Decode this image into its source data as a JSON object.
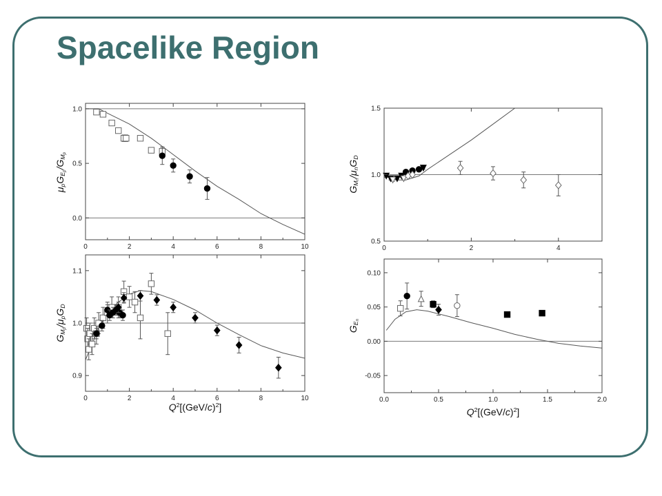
{
  "slide": {
    "title": "Spacelike Region"
  },
  "chart_data": [
    {
      "id": "p1",
      "type": "scatter",
      "ylabel_parts": [
        "μ",
        "p",
        "G",
        "E",
        "p",
        "/G",
        "M",
        "p"
      ],
      "xlim": [
        0,
        10
      ],
      "ylim": [
        -0.2,
        1.05
      ],
      "xticks": [
        0,
        2,
        4,
        6,
        8,
        10
      ],
      "yticks": [
        0.0,
        0.5,
        1.0
      ],
      "xtick_labels": [
        "0",
        "2",
        "4",
        "6",
        "8",
        "10"
      ],
      "ytick_labels": [
        "0.0",
        "0.5",
        "1.0"
      ],
      "hlines": [
        1.0,
        0.0
      ],
      "curve": [
        [
          0,
          1.0
        ],
        [
          0.6,
          1.0
        ],
        [
          1,
          0.96
        ],
        [
          2,
          0.86
        ],
        [
          3,
          0.73
        ],
        [
          4,
          0.58
        ],
        [
          5,
          0.43
        ],
        [
          6,
          0.29
        ],
        [
          7,
          0.17
        ],
        [
          8,
          0.04
        ],
        [
          9,
          -0.06
        ],
        [
          10,
          -0.15
        ]
      ],
      "series": [
        {
          "marker": "open-square",
          "points": [
            [
              0.5,
              0.97,
              0
            ],
            [
              0.8,
              0.95,
              0
            ],
            [
              1.2,
              0.87,
              0
            ],
            [
              1.5,
              0.8,
              0.02
            ],
            [
              1.75,
              0.73,
              0.03
            ],
            [
              1.85,
              0.73,
              0.03
            ],
            [
              2.5,
              0.73,
              0.02
            ],
            [
              3.0,
              0.62,
              0.02
            ],
            [
              3.5,
              0.61,
              0.04
            ]
          ]
        },
        {
          "marker": "filled-circle",
          "points": [
            [
              3.5,
              0.57,
              0.08
            ],
            [
              4.0,
              0.48,
              0.06
            ],
            [
              4.75,
              0.38,
              0.06
            ],
            [
              5.55,
              0.27,
              0.1
            ]
          ]
        }
      ]
    },
    {
      "id": "p2",
      "type": "scatter",
      "ylabel_parts": [
        "G",
        "M",
        "n",
        "/μ",
        "n",
        "G",
        "D"
      ],
      "xlim": [
        0,
        5
      ],
      "ylim": [
        0.5,
        1.5
      ],
      "xticks": [
        0,
        2,
        4
      ],
      "yticks": [
        0.5,
        1.0,
        1.5
      ],
      "xtick_labels": [
        "0",
        "2",
        "4"
      ],
      "ytick_labels": [
        "0.5",
        "1.0",
        "1.5"
      ],
      "hlines": [
        1.0
      ],
      "curve": [
        [
          0,
          0.99
        ],
        [
          0.3,
          0.96
        ],
        [
          0.5,
          0.96
        ],
        [
          0.8,
          0.99
        ],
        [
          1.0,
          1.04
        ],
        [
          1.5,
          1.15
        ],
        [
          2.0,
          1.26
        ],
        [
          2.5,
          1.38
        ],
        [
          3.0,
          1.5
        ],
        [
          3.2,
          1.55
        ]
      ],
      "series": [
        {
          "marker": "filled-triangle-down",
          "points": [
            [
              0.05,
              0.99,
              0.01
            ],
            [
              0.15,
              0.97,
              0.01
            ],
            [
              0.3,
              0.97,
              0.01
            ],
            [
              0.4,
              0.99,
              0.01
            ],
            [
              0.9,
              1.05,
              0.01
            ]
          ]
        },
        {
          "marker": "filled-circle",
          "points": [
            [
              0.5,
              1.02,
              0.01
            ],
            [
              0.65,
              1.03,
              0.01
            ],
            [
              0.8,
              1.04,
              0.01
            ]
          ]
        },
        {
          "marker": "open-triangle-down",
          "points": [
            [
              0.2,
              0.96,
              0.01
            ],
            [
              0.45,
              0.97,
              0.01
            ]
          ]
        },
        {
          "marker": "open-diamond",
          "points": [
            [
              0.55,
              0.99,
              0.01
            ],
            [
              0.65,
              1.0,
              0.01
            ],
            [
              1.75,
              1.05,
              0.05
            ],
            [
              2.5,
              1.01,
              0.05
            ],
            [
              3.2,
              0.96,
              0.06
            ],
            [
              4.0,
              0.92,
              0.08
            ]
          ]
        }
      ]
    },
    {
      "id": "p3",
      "type": "scatter",
      "ylabel_parts": [
        "G",
        "M",
        "p",
        "/μ",
        "p",
        "G",
        "D"
      ],
      "xlabel_parts": [
        "Q",
        "2",
        "[(GeV/",
        "c",
        ")",
        "2",
        "]"
      ],
      "xlim": [
        0,
        10
      ],
      "ylim": [
        0.87,
        1.13
      ],
      "xticks": [
        0,
        2,
        4,
        6,
        8,
        10
      ],
      "yticks": [
        0.9,
        1.0,
        1.1
      ],
      "xtick_labels": [
        "0",
        "2",
        "4",
        "6",
        "8",
        "10"
      ],
      "ytick_labels": [
        "0.9",
        "1.0",
        "1.1"
      ],
      "hlines": [
        1.0
      ],
      "curve": [
        [
          0,
          0.93
        ],
        [
          0.3,
          0.96
        ],
        [
          0.6,
          0.99
        ],
        [
          1.0,
          1.02
        ],
        [
          1.5,
          1.04
        ],
        [
          2.0,
          1.055
        ],
        [
          2.5,
          1.062
        ],
        [
          3.0,
          1.06
        ],
        [
          4.0,
          1.045
        ],
        [
          5.0,
          1.025
        ],
        [
          6.0,
          1.0
        ],
        [
          7.0,
          0.978
        ],
        [
          8.0,
          0.957
        ],
        [
          9.0,
          0.943
        ],
        [
          10,
          0.933
        ]
      ],
      "series": [
        {
          "marker": "open-square",
          "points": [
            [
              0.05,
              0.99,
              0.02
            ],
            [
              0.1,
              0.97,
              0.02
            ],
            [
              0.15,
              0.95,
              0.02
            ],
            [
              0.2,
              0.98,
              0.02
            ],
            [
              0.3,
              0.96,
              0.02
            ],
            [
              0.4,
              0.99,
              0.02
            ],
            [
              0.5,
              0.98,
              0.02
            ],
            [
              0.6,
              1.0,
              0.02
            ],
            [
              0.8,
              1.01,
              0.02
            ],
            [
              1.0,
              1.02,
              0.02
            ],
            [
              1.2,
              1.03,
              0.02
            ],
            [
              1.5,
              1.03,
              0.02
            ],
            [
              1.75,
              1.06,
              0.02
            ],
            [
              2.0,
              1.05,
              0.02
            ],
            [
              2.25,
              1.04,
              0.02
            ],
            [
              2.5,
              1.01,
              0.04
            ],
            [
              3.0,
              1.075,
              0.02
            ],
            [
              3.75,
              0.98,
              0.04
            ]
          ]
        },
        {
          "marker": "filled-circle",
          "points": [
            [
              0.5,
              0.98,
              0.01
            ],
            [
              0.75,
              0.995,
              0.01
            ],
            [
              1.0,
              1.025,
              0.01
            ],
            [
              1.1,
              1.015,
              0.01
            ],
            [
              1.25,
              1.02,
              0.01
            ],
            [
              1.4,
              1.025,
              0.01
            ],
            [
              1.55,
              1.02,
              0.01
            ],
            [
              1.7,
              1.015,
              0.01
            ]
          ]
        },
        {
          "marker": "filled-diamond",
          "points": [
            [
              1.5,
              1.03,
              0.01
            ],
            [
              1.75,
              1.048,
              0.01
            ],
            [
              2.5,
              1.052,
              0.01
            ],
            [
              3.25,
              1.044,
              0.01
            ],
            [
              4.0,
              1.03,
              0.01
            ],
            [
              5.0,
              1.01,
              0.01
            ],
            [
              6.0,
              0.986,
              0.01
            ],
            [
              7.0,
              0.958,
              0.015
            ],
            [
              8.8,
              0.915,
              0.02
            ]
          ]
        }
      ]
    },
    {
      "id": "p4",
      "type": "scatter",
      "ylabel_parts": [
        "G",
        "E",
        "n"
      ],
      "xlabel_parts": [
        "Q",
        "2",
        "[(GeV/",
        "c",
        ")",
        "2",
        "]"
      ],
      "xlim": [
        0,
        2
      ],
      "ylim": [
        -0.075,
        0.12
      ],
      "xticks": [
        0,
        0.5,
        1.0,
        1.5,
        2.0
      ],
      "yticks": [
        -0.05,
        0.0,
        0.05,
        0.1
      ],
      "xtick_labels": [
        "0.0",
        "0.5",
        "1.0",
        "1.5",
        "2.0"
      ],
      "ytick_labels": [
        "-0.05",
        "0.00",
        "0.05",
        "0.10"
      ],
      "hlines": [
        0.0
      ],
      "curve": [
        [
          0.02,
          0.016
        ],
        [
          0.1,
          0.032
        ],
        [
          0.2,
          0.043
        ],
        [
          0.3,
          0.046
        ],
        [
          0.4,
          0.044
        ],
        [
          0.6,
          0.036
        ],
        [
          0.8,
          0.027
        ],
        [
          1.0,
          0.019
        ],
        [
          1.2,
          0.01
        ],
        [
          1.4,
          0.003
        ],
        [
          1.6,
          -0.003
        ],
        [
          1.8,
          -0.007
        ],
        [
          2.0,
          -0.01
        ]
      ],
      "series": [
        {
          "marker": "open-square",
          "points": [
            [
              0.15,
              0.048,
              0.011
            ]
          ]
        },
        {
          "marker": "filled-circle",
          "points": [
            [
              0.21,
              0.066,
              0.019
            ]
          ]
        },
        {
          "marker": "open-triangle",
          "points": [
            [
              0.34,
              0.062,
              0.011
            ]
          ]
        },
        {
          "marker": "filled-square",
          "points": [
            [
              0.45,
              0.054,
              0.005
            ],
            [
              1.13,
              0.039,
              0
            ],
            [
              1.45,
              0.041,
              0
            ]
          ]
        },
        {
          "marker": "filled-diamond",
          "points": [
            [
              0.5,
              0.046,
              0.008
            ]
          ]
        },
        {
          "marker": "open-circle",
          "points": [
            [
              0.67,
              0.052,
              0.016
            ]
          ]
        }
      ]
    }
  ]
}
